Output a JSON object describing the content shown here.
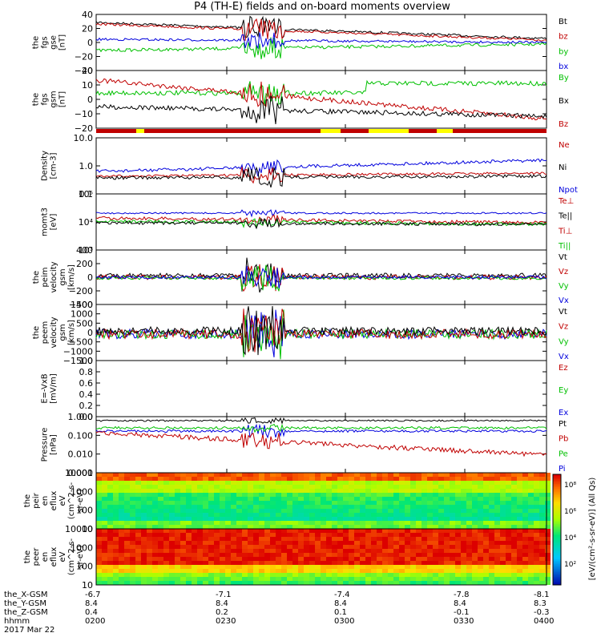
{
  "title": "P4 (TH-E) fields and on-board moments overview",
  "colors": {
    "black": "#000000",
    "red": "#c00000",
    "green": "#00c000",
    "blue": "#0000dd",
    "yellow": "#ffff00"
  },
  "chart_data": [
    {
      "type": "line",
      "ylabel": [
        "the",
        "fgs",
        "gse",
        "[nT]"
      ],
      "ylim": [
        -40,
        40
      ],
      "yticks": [
        "40",
        "20",
        "0",
        "−20",
        "−40"
      ],
      "series": [
        {
          "name": "Bt",
          "color": "black"
        },
        {
          "name": "bz",
          "color": "red"
        },
        {
          "name": "by",
          "color": "green"
        },
        {
          "name": "bx",
          "color": "blue"
        }
      ]
    },
    {
      "type": "line",
      "ylabel": [
        "the",
        "fgs",
        "gsm",
        "[nT]"
      ],
      "ylim": [
        -25,
        25
      ],
      "yticks": [
        "20",
        "10",
        "0",
        "−10",
        "−20"
      ],
      "series": [
        {
          "name": "By",
          "color": "green"
        },
        {
          "name": "Bx",
          "color": "black"
        },
        {
          "name": "Bz",
          "color": "red"
        }
      ]
    },
    {
      "type": "line",
      "ylabel": [
        "Density",
        "[cm-3]"
      ],
      "log": true,
      "yticks": [
        "10.0",
        "1.0",
        "0.1"
      ],
      "series": [
        {
          "name": "Ne",
          "color": "red"
        },
        {
          "name": "Ni",
          "color": "black"
        },
        {
          "name": "Npot",
          "color": "blue"
        }
      ]
    },
    {
      "type": "line",
      "ylabel": [
        "momt3",
        "[eV]"
      ],
      "log": true,
      "yticks": [
        "10⁵",
        "10⁴",
        "10³"
      ],
      "series": [
        {
          "name": "Te⊥",
          "color": "red"
        },
        {
          "name": "Te||",
          "color": "black"
        },
        {
          "name": "Ti⊥",
          "color": "red"
        },
        {
          "name": "Ti||",
          "color": "green"
        }
      ]
    },
    {
      "type": "line",
      "ylabel": [
        "the",
        "peim",
        "velocity",
        "gsm",
        "[km/s]"
      ],
      "ylim": [
        -400,
        400
      ],
      "yticks": [
        "400",
        "200",
        "0",
        "−200",
        "−400"
      ],
      "series": [
        {
          "name": "Vt",
          "color": "black"
        },
        {
          "name": "Vz",
          "color": "red"
        },
        {
          "name": "Vy",
          "color": "green"
        },
        {
          "name": "Vx",
          "color": "blue"
        }
      ]
    },
    {
      "type": "line",
      "ylabel": [
        "the",
        "peem",
        "velocity",
        "gsm",
        "[km/s]"
      ],
      "ylim": [
        -1500,
        1500
      ],
      "yticks": [
        "1500",
        "1000",
        "500",
        "0",
        "−500",
        "−1000",
        "−1500"
      ],
      "series": [
        {
          "name": "Vt",
          "color": "black"
        },
        {
          "name": "Vz",
          "color": "red"
        },
        {
          "name": "Vy",
          "color": "green"
        },
        {
          "name": "Vx",
          "color": "blue"
        }
      ]
    },
    {
      "type": "line",
      "ylabel": [
        "E=-VxB",
        "[mV/m]"
      ],
      "yticks": [
        "1.0",
        "0.8",
        "0.6",
        "0.4",
        "0.2",
        "0.0"
      ],
      "series": [
        {
          "name": "Ez",
          "color": "red"
        },
        {
          "name": "Ey",
          "color": "green"
        },
        {
          "name": "Ex",
          "color": "blue"
        }
      ]
    },
    {
      "type": "line",
      "ylabel": [
        "Pressure",
        "[nPa]"
      ],
      "log": true,
      "yticks": [
        "1.000",
        "0.100",
        "0.010",
        "0.001"
      ],
      "series": [
        {
          "name": "Pt",
          "color": "black"
        },
        {
          "name": "Pb",
          "color": "red"
        },
        {
          "name": "Pe",
          "color": "green"
        },
        {
          "name": "Pi",
          "color": "blue"
        }
      ]
    },
    {
      "type": "heatmap",
      "ylabel": [
        "the",
        "peir",
        "en",
        "eflux",
        "eV",
        "(cm^2-s-",
        "sr-eV)"
      ],
      "log": true,
      "yticks": [
        "10000",
        "1000",
        "100",
        "10"
      ]
    },
    {
      "type": "heatmap",
      "ylabel": [
        "the",
        "peer",
        "en",
        "eflux",
        "eV",
        "(cm^2-s-",
        "sr-eV)"
      ],
      "log": true,
      "yticks": [
        "10000",
        "1000",
        "100",
        "10"
      ]
    }
  ],
  "colorbar": {
    "label": "[eV/(cm²-s-sr-eV)] (All Qs)",
    "ticks": [
      "10⁸",
      "10⁶",
      "10⁴",
      "10²"
    ]
  },
  "xaxis": {
    "row_labels": [
      "the_X-GSM",
      "the_Y-GSM",
      "the_Z-GSM",
      "hhmm",
      "2017 Mar 22"
    ],
    "columns": [
      [
        "-6.7",
        "8.4",
        "0.4",
        "0200"
      ],
      [
        "-7.1",
        "8.4",
        "0.2",
        "0230"
      ],
      [
        "-7.4",
        "8.4",
        "0.1",
        "0300"
      ],
      [
        "-7.8",
        "8.4",
        "-0.1",
        "0330"
      ],
      [
        "-8.1",
        "8.3",
        "-0.3",
        "0400"
      ]
    ]
  }
}
